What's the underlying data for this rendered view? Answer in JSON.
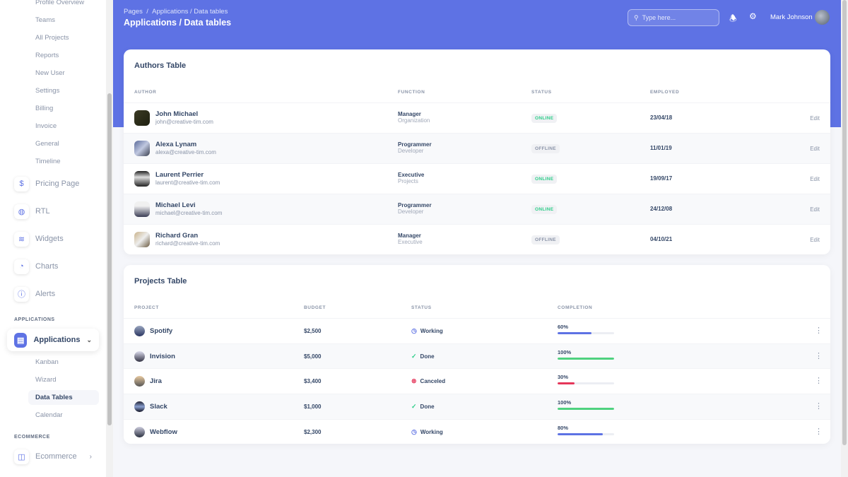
{
  "sidebar": {
    "sub_items_top": [
      "Profile Overview",
      "Teams",
      "All Projects",
      "Reports",
      "New User",
      "Settings",
      "Billing",
      "Invoice",
      "General",
      "Timeline"
    ],
    "nav_items": [
      {
        "label": "Pricing Page",
        "icon": "$"
      },
      {
        "label": "RTL",
        "icon": "◍"
      },
      {
        "label": "Widgets",
        "icon": "≋"
      },
      {
        "label": "Charts",
        "icon": "◔"
      },
      {
        "label": "Alerts",
        "icon": "ⓘ"
      }
    ],
    "applications_section": "APPLICATIONS",
    "applications_label": "Applications",
    "app_sub_items": [
      "Kanban",
      "Wizard",
      "Data Tables",
      "Calendar"
    ],
    "ecommerce_section": "ECOMMERCE",
    "ecommerce_label": "Ecommerce"
  },
  "header": {
    "breadcrumb_root": "Pages",
    "breadcrumb_sep": "/",
    "breadcrumb_current": "Applications / Data tables",
    "title": "Applications / Data tables",
    "search_placeholder": "Type here...",
    "user_name": "Mark Johnson"
  },
  "authors": {
    "title": "Authors Table",
    "columns": [
      "AUTHOR",
      "FUNCTION",
      "STATUS",
      "EMPLOYED"
    ],
    "edit_label": "Edit",
    "rows": [
      {
        "name": "John Michael",
        "email": "john@creative-tim.com",
        "function": "Manager",
        "sub": "Organization",
        "status": "ONLINE",
        "employed": "23/04/18"
      },
      {
        "name": "Alexa Lynam",
        "email": "alexa@creative-tim.com",
        "function": "Programmer",
        "sub": "Developer",
        "status": "OFFLINE",
        "employed": "11/01/19"
      },
      {
        "name": "Laurent Perrier",
        "email": "laurent@creative-tim.com",
        "function": "Executive",
        "sub": "Projects",
        "status": "ONLINE",
        "employed": "19/09/17"
      },
      {
        "name": "Michael Levi",
        "email": "michael@creative-tim.com",
        "function": "Programmer",
        "sub": "Developer",
        "status": "ONLINE",
        "employed": "24/12/08"
      },
      {
        "name": "Richard Gran",
        "email": "richard@creative-tim.com",
        "function": "Manager",
        "sub": "Executive",
        "status": "OFFLINE",
        "employed": "04/10/21"
      }
    ]
  },
  "projects": {
    "title": "Projects Table",
    "columns": [
      "PROJECT",
      "BUDGET",
      "STATUS",
      "COMPLETION"
    ],
    "rows": [
      {
        "name": "Spotify",
        "budget": "$2,500",
        "status": "Working",
        "completion": "60%",
        "value": 60,
        "color": "#5e72e4"
      },
      {
        "name": "Invision",
        "budget": "$5,000",
        "status": "Done",
        "completion": "100%",
        "value": 100,
        "color": "#4fd27f"
      },
      {
        "name": "Jira",
        "budget": "$3,400",
        "status": "Canceled",
        "completion": "30%",
        "value": 30,
        "color": "#e5365a"
      },
      {
        "name": "Slack",
        "budget": "$1,000",
        "status": "Done",
        "completion": "100%",
        "value": 100,
        "color": "#4fd27f"
      },
      {
        "name": "Webflow",
        "budget": "$2,300",
        "status": "Working",
        "completion": "80%",
        "value": 80,
        "color": "#5e72e4"
      }
    ]
  },
  "colors": {
    "primary": "#5e72e4",
    "online": "#2dce89",
    "offline": "#8a94a8",
    "canceled": "#e5365a"
  }
}
